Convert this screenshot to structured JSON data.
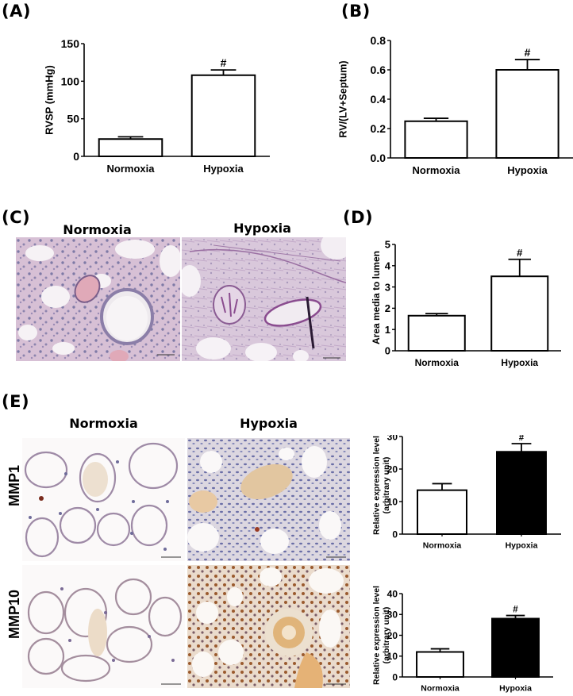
{
  "panels": {
    "A": {
      "label": "(A)"
    },
    "B": {
      "label": "(B)"
    },
    "C": {
      "label": "(C)",
      "images": [
        {
          "title": "Normoxia"
        },
        {
          "title": "Hypoxia"
        }
      ]
    },
    "D": {
      "label": "(D)"
    },
    "E": {
      "label": "(E)",
      "columns": [
        "Normoxia",
        "Hypoxia"
      ],
      "rows": [
        "MMP1",
        "MMP10"
      ]
    }
  },
  "colors": {
    "bar_outline": "#000000",
    "bar_white": "#ffffff",
    "bar_black": "#000000",
    "pas_stain": "#c9a8cc",
    "pas_nuclei": "#7e7aa6",
    "ihc_brown": "#c98a4a",
    "ihc_blue": "#8b8fbf"
  },
  "chart_data": [
    {
      "id": "A",
      "type": "bar",
      "title": "",
      "xlabel": "",
      "ylabel": "RVSP (mmHg)",
      "categories": [
        "Normoxia",
        "Hypoxia"
      ],
      "values": [
        23,
        108
      ],
      "errors": [
        3,
        7
      ],
      "significance": [
        "",
        "#"
      ],
      "fills": [
        "#ffffff",
        "#ffffff"
      ],
      "ylim": [
        0,
        150
      ],
      "yticks": [
        "0",
        "50",
        "100",
        "150"
      ],
      "grid": false,
      "legend": null
    },
    {
      "id": "B",
      "type": "bar",
      "title": "",
      "xlabel": "",
      "ylabel": "RV/(LV+Septum)",
      "categories": [
        "Normoxia",
        "Hypoxia"
      ],
      "values": [
        0.25,
        0.6
      ],
      "errors": [
        0.02,
        0.07
      ],
      "significance": [
        "",
        "#"
      ],
      "fills": [
        "#ffffff",
        "#ffffff"
      ],
      "ylim": [
        0,
        0.8
      ],
      "yticks": [
        "0.0",
        "0.2",
        "0.4",
        "0.6",
        "0.8"
      ],
      "grid": false,
      "legend": null
    },
    {
      "id": "D",
      "type": "bar",
      "title": "",
      "xlabel": "",
      "ylabel": "Area media to lumen",
      "categories": [
        "Normoxia",
        "Hypoxia"
      ],
      "values": [
        1.65,
        3.5
      ],
      "errors": [
        0.1,
        0.8
      ],
      "significance": [
        "",
        "#"
      ],
      "fills": [
        "#ffffff",
        "#ffffff"
      ],
      "ylim": [
        0,
        5
      ],
      "yticks": [
        "0",
        "1",
        "2",
        "3",
        "4",
        "5"
      ],
      "grid": false,
      "legend": null
    },
    {
      "id": "E-MMP1",
      "type": "bar",
      "title": "",
      "xlabel": "",
      "ylabel": "Relative expression level (arbitrary unit)",
      "ylabel_lines": [
        "Relative expression level",
        "(arbitrary unit)"
      ],
      "categories": [
        "Normoxia",
        "Hypoxia"
      ],
      "values": [
        13.5,
        25.3
      ],
      "errors": [
        2.0,
        2.5
      ],
      "significance": [
        "",
        "#"
      ],
      "fills": [
        "#ffffff",
        "#000000"
      ],
      "ylim": [
        0,
        30
      ],
      "yticks": [
        "0",
        "10",
        "20",
        "30"
      ],
      "grid": false,
      "legend": null
    },
    {
      "id": "E-MMP10",
      "type": "bar",
      "title": "",
      "xlabel": "",
      "ylabel": "Relative expression level (arbitrary unit)",
      "ylabel_lines": [
        "Relative expression level",
        "(arbitrary unit)"
      ],
      "categories": [
        "Normoxia",
        "Hypoxia"
      ],
      "values": [
        12,
        28
      ],
      "errors": [
        1.5,
        1.5
      ],
      "significance": [
        "",
        "#"
      ],
      "fills": [
        "#ffffff",
        "#000000"
      ],
      "ylim": [
        0,
        40
      ],
      "yticks": [
        "0",
        "10",
        "20",
        "30",
        "40"
      ],
      "grid": false,
      "legend": null
    }
  ]
}
